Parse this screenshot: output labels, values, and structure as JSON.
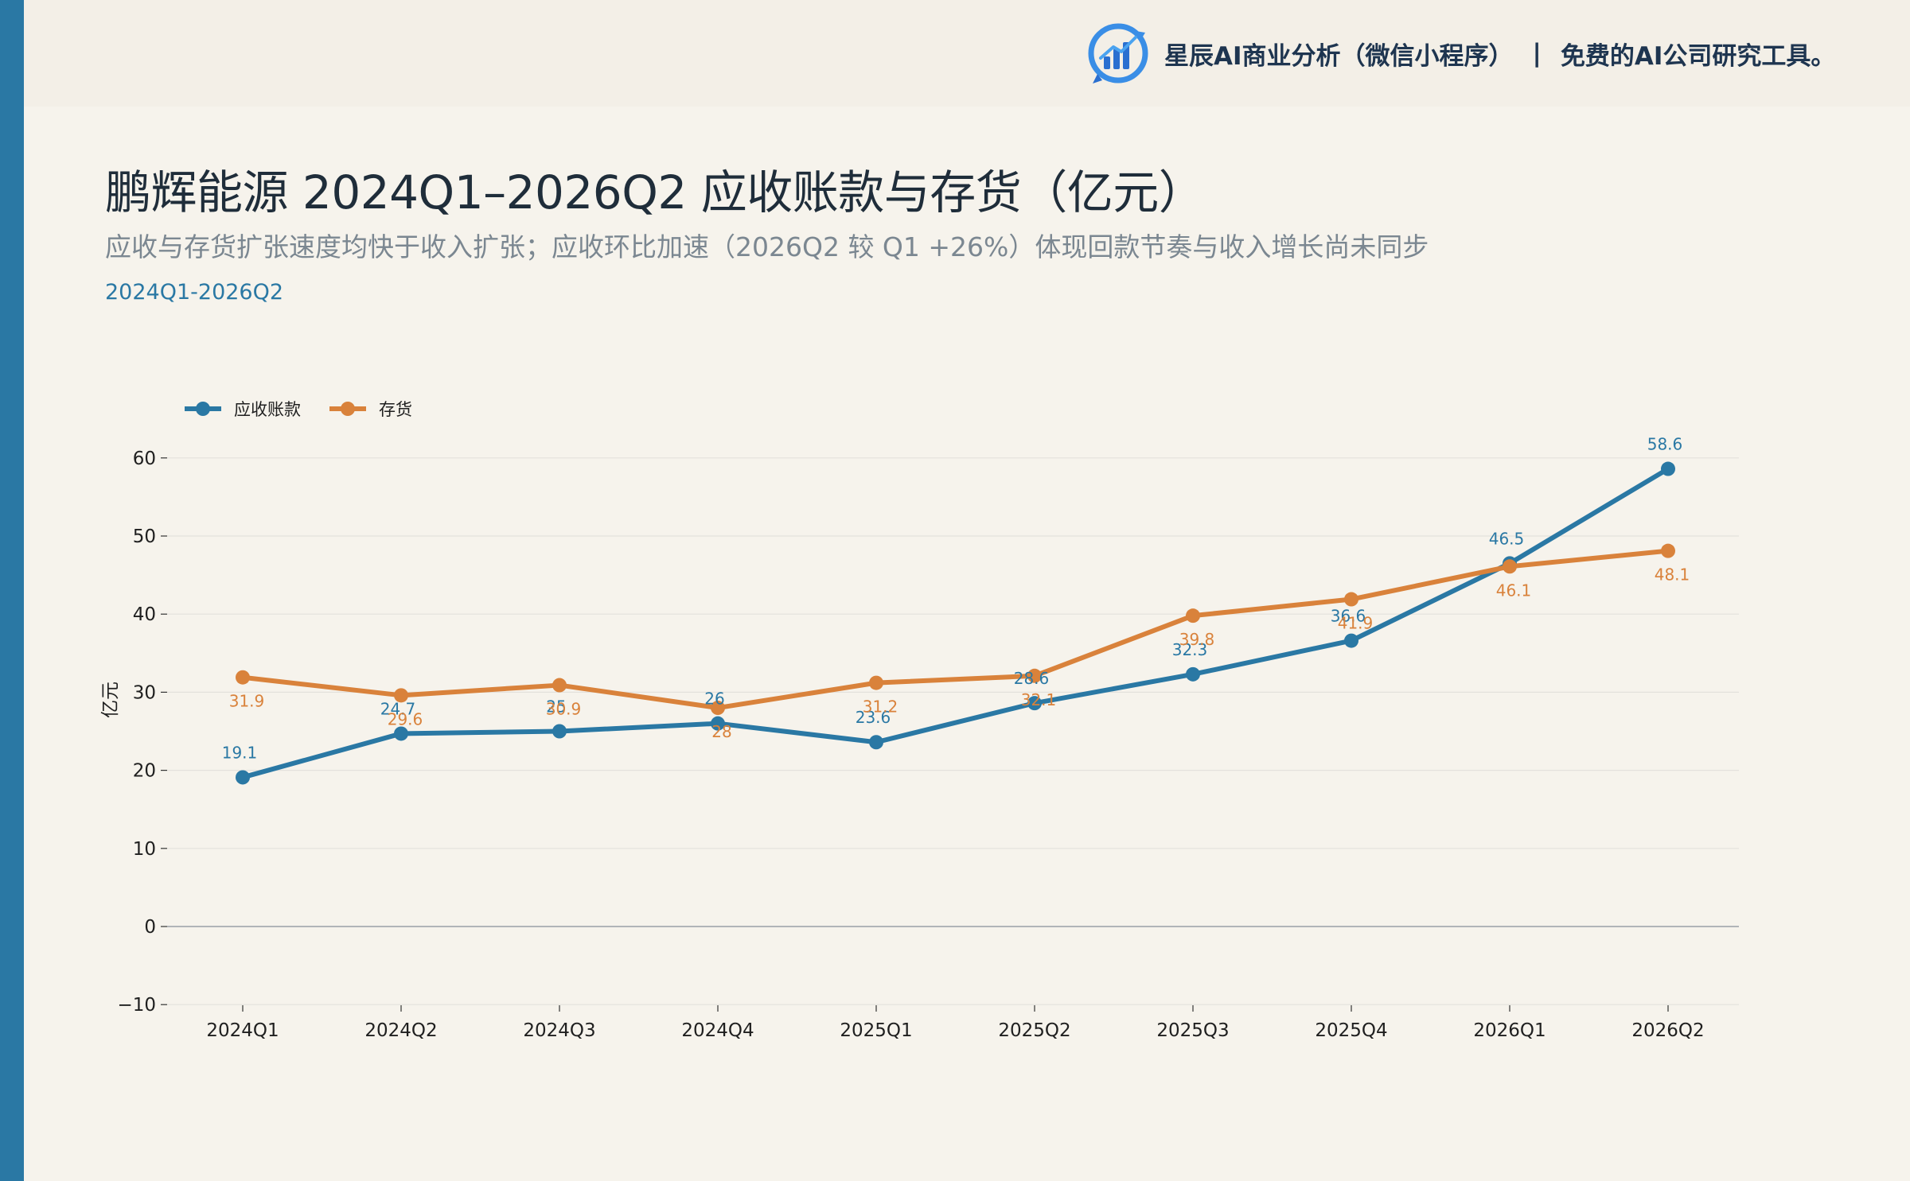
{
  "brand": {
    "name": "星辰AI商业分析（微信小程序）",
    "separator": "|",
    "slogan": "免费的AI公司研究工具。"
  },
  "title": "鹏辉能源 2024Q1–2026Q2 应收账款与存货（亿元）",
  "subtitle": "应收与存货扩张速度均快于收入扩张；应收环比加速（2026Q2 较 Q1 +26%）体现回款节奏与收入增长尚未同步",
  "range_label": "2024Q1-2026Q2",
  "colors": {
    "accent": "#2a78a4",
    "receivables": "#2a78a4",
    "inventory": "#d9823b",
    "grid": "#e3e1dc",
    "zero_line": "#9aa0a6"
  },
  "chart_data": {
    "type": "line",
    "title": "鹏辉能源 2024Q1–2026Q2 应收账款与存货（亿元）",
    "xlabel": "",
    "ylabel": "亿元",
    "x": [
      "2024Q1",
      "2024Q2",
      "2024Q3",
      "2024Q4",
      "2025Q1",
      "2025Q2",
      "2025Q3",
      "2025Q4",
      "2026Q1",
      "2026Q2"
    ],
    "series": [
      {
        "name": "应收账款",
        "color": "#2a78a4",
        "values": [
          19.1,
          24.7,
          25,
          26,
          23.6,
          28.6,
          32.3,
          36.6,
          46.5,
          58.6
        ],
        "labels": [
          "19.1",
          "24.7",
          "25",
          "26",
          "23.6",
          "28.6",
          "32.3",
          "36.6",
          "46.5",
          "58.6"
        ]
      },
      {
        "name": "存货",
        "color": "#d9823b",
        "values": [
          31.9,
          29.6,
          30.9,
          28,
          31.2,
          32.1,
          39.8,
          41.9,
          46.1,
          48.1
        ],
        "labels": [
          "31.9",
          "29.6",
          "30.9",
          "28",
          "31.2",
          "32.1",
          "39.8",
          "41.9",
          "46.1",
          "48.1"
        ]
      }
    ],
    "ylim": [
      -10,
      62
    ],
    "yticks": [
      -10,
      0,
      10,
      20,
      30,
      40,
      50,
      60
    ],
    "ytick_labels": [
      "−10",
      "0",
      "10",
      "20",
      "30",
      "40",
      "50",
      "60"
    ],
    "grid": true,
    "legend_position": "top-left"
  }
}
